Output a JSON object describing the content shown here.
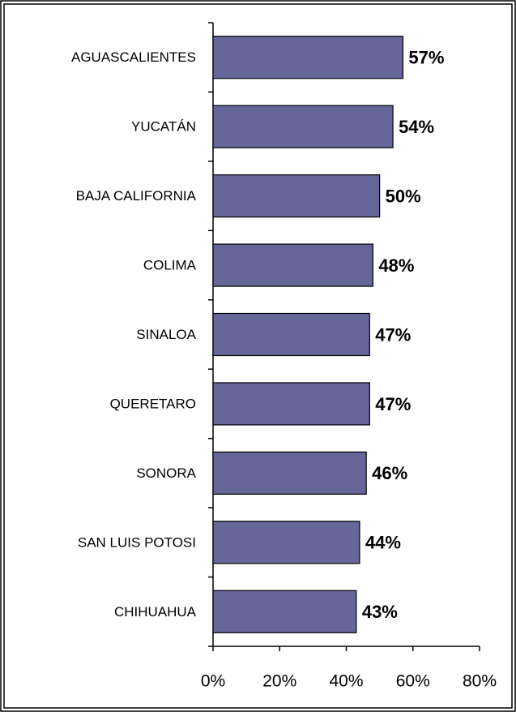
{
  "chart_data": {
    "type": "bar",
    "orientation": "horizontal",
    "categories": [
      "AGUASCALIENTES",
      "YUCATÁN",
      "BAJA CALIFORNIA",
      "COLIMA",
      "SINALOA",
      "QUERETARO",
      "SONORA",
      "SAN LUIS POTOSI",
      "CHIHUAHUA"
    ],
    "values": [
      57,
      54,
      50,
      48,
      47,
      47,
      46,
      44,
      43
    ],
    "value_labels": [
      "57%",
      "54%",
      "50%",
      "48%",
      "47%",
      "47%",
      "46%",
      "44%",
      "43%"
    ],
    "color": "#666699",
    "xlim": [
      0,
      80
    ],
    "xticks": [
      {
        "value": 0,
        "label": "0%"
      },
      {
        "value": 20,
        "label": "20%"
      },
      {
        "value": 40,
        "label": "40%"
      },
      {
        "value": 60,
        "label": "60%"
      },
      {
        "value": 80,
        "label": "80%"
      }
    ]
  }
}
